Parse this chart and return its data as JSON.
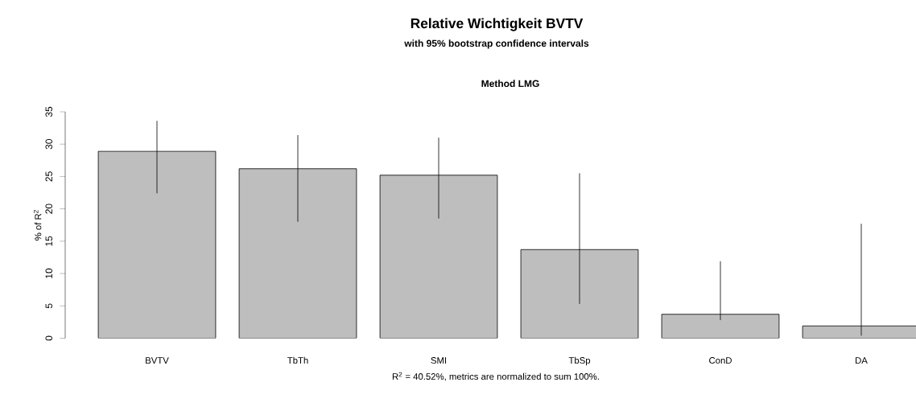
{
  "chart_data": {
    "type": "bar",
    "title": "Relative Wichtigkeit  BVTV",
    "subtitle": "with 95% bootstrap confidence intervals",
    "ylabel": "% of R$^{2}$",
    "categories": [
      "BVTV",
      "TbTh",
      "SMI",
      "TbSp",
      "ConD",
      "DA"
    ],
    "values": [
      28.9,
      26.2,
      25.2,
      13.7,
      3.7,
      1.9
    ],
    "errors": [
      [
        22.4,
        33.6
      ],
      [
        18.0,
        31.4
      ],
      [
        18.5,
        31.0
      ],
      [
        5.3,
        25.5
      ],
      [
        2.8,
        11.9
      ],
      [
        0.4,
        17.7
      ]
    ],
    "color": "#bebebe",
    "ylim": [
      0,
      35
    ],
    "yticks": [
      0,
      5,
      10,
      15,
      20,
      25,
      30,
      35
    ],
    "annotations": [
      "Method LMG",
      "R$^{2}$ = 40.52%, metrics are normalized to sum 100%."
    ]
  }
}
